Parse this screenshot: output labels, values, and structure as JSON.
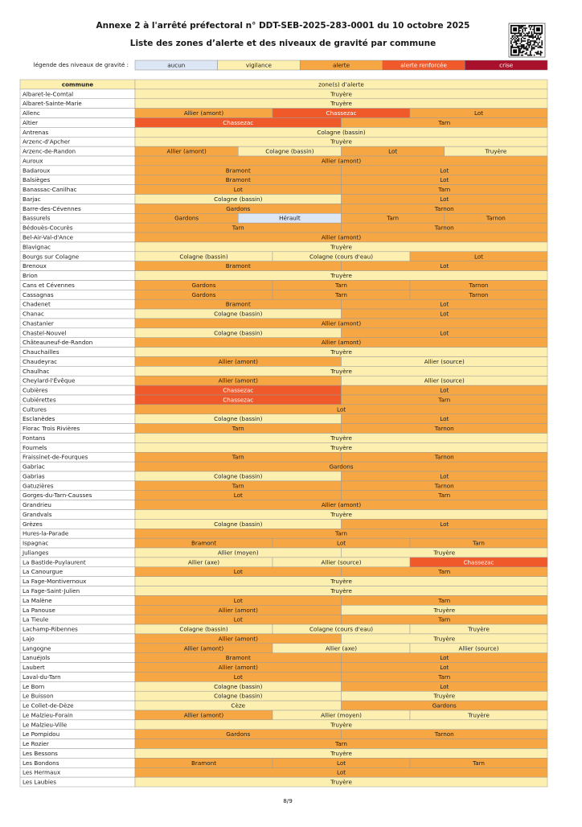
{
  "header": {
    "title": "Annexe 2 à l'arrêté préfectoral n° DDT-SEB-2025-283-0001 du 10 octobre 2025",
    "subtitle": "Liste des zones d’alerte et des niveaux de gravité par commune"
  },
  "legend": {
    "label": "légende des niveaux de gravité :",
    "levels": [
      {
        "name": "aucun",
        "color": "#dde6f4",
        "text_color": "#1a1a1a"
      },
      {
        "name": "vigilance",
        "color": "#fdefb0",
        "text_color": "#1a1a1a"
      },
      {
        "name": "alerte",
        "color": "#f6a744",
        "text_color": "#1a1a1a"
      },
      {
        "name": "alerte renforcée",
        "color": "#f05a2a",
        "text_color": "#ffffff"
      },
      {
        "name": "crise",
        "color": "#a9102c",
        "text_color": "#ffffff"
      }
    ]
  },
  "table": {
    "columns": [
      "commune",
      "zone(s) d’alerte"
    ],
    "header_level": 1,
    "rows": [
      [
        "Albaret-le-Comtal",
        [
          [
            "Truyère",
            1
          ]
        ]
      ],
      [
        "Albaret-Sainte-Marie",
        [
          [
            "Truyère",
            1
          ]
        ]
      ],
      [
        "Allenc",
        [
          [
            "Allier (amont)",
            2
          ],
          [
            "Chassezac",
            3
          ],
          [
            "Lot",
            2
          ]
        ]
      ],
      [
        "Altier",
        [
          [
            "Chassezac",
            3
          ],
          [
            "Tarn",
            2
          ]
        ]
      ],
      [
        "Antrenas",
        [
          [
            "Colagne (bassin)",
            1
          ]
        ]
      ],
      [
        "Arzenc-d'Apcher",
        [
          [
            "Truyère",
            1
          ]
        ]
      ],
      [
        "Arzenc-de-Randon",
        [
          [
            "Allier (amont)",
            2
          ],
          [
            "Colagne (bassin)",
            1
          ],
          [
            "Lot",
            2
          ],
          [
            "Truyère",
            1
          ]
        ]
      ],
      [
        "Auroux",
        [
          [
            "Allier (amont)",
            2
          ]
        ]
      ],
      [
        "Badaroux",
        [
          [
            "Bramont",
            2
          ],
          [
            "Lot",
            2
          ]
        ]
      ],
      [
        "Balsièges",
        [
          [
            "Bramont",
            2
          ],
          [
            "Lot",
            2
          ]
        ]
      ],
      [
        "Banassac-Canilhac",
        [
          [
            "Lot",
            2
          ],
          [
            "Tarn",
            2
          ]
        ]
      ],
      [
        "Barjac",
        [
          [
            "Colagne (bassin)",
            1
          ],
          [
            "Lot",
            2
          ]
        ]
      ],
      [
        "Barre-des-Cévennes",
        [
          [
            "Gardons",
            2
          ],
          [
            "Tarnon",
            2
          ]
        ]
      ],
      [
        "Bassurels",
        [
          [
            "Gardons",
            2
          ],
          [
            "Hérault",
            0
          ],
          [
            "Tarn",
            2
          ],
          [
            "Tarnon",
            2
          ]
        ]
      ],
      [
        "Bédouès-Cocurès",
        [
          [
            "Tarn",
            2
          ],
          [
            "Tarnon",
            2
          ]
        ]
      ],
      [
        "Bel-Air-Val-d'Ance",
        [
          [
            "Allier (amont)",
            2
          ]
        ]
      ],
      [
        "Blavignac",
        [
          [
            "Truyère",
            1
          ]
        ]
      ],
      [
        "Bourgs sur Colagne",
        [
          [
            "Colagne (bassin)",
            1
          ],
          [
            "Colagne (cours d'eau)",
            1
          ],
          [
            "Lot",
            2
          ]
        ]
      ],
      [
        "Brenoux",
        [
          [
            "Bramont",
            2
          ],
          [
            "Lot",
            2
          ]
        ]
      ],
      [
        "Brion",
        [
          [
            "Truyère",
            1
          ]
        ]
      ],
      [
        "Cans et Cévennes",
        [
          [
            "Gardons",
            2
          ],
          [
            "Tarn",
            2
          ],
          [
            "Tarnon",
            2
          ]
        ]
      ],
      [
        "Cassagnas",
        [
          [
            "Gardons",
            2
          ],
          [
            "Tarn",
            2
          ],
          [
            "Tarnon",
            2
          ]
        ]
      ],
      [
        "Chadenet",
        [
          [
            "Bramont",
            2
          ],
          [
            "Lot",
            2
          ]
        ]
      ],
      [
        "Chanac",
        [
          [
            "Colagne (bassin)",
            1
          ],
          [
            "Lot",
            2
          ]
        ]
      ],
      [
        "Chastanier",
        [
          [
            "Allier (amont)",
            2
          ]
        ]
      ],
      [
        "Chastel-Nouvel",
        [
          [
            "Colagne (bassin)",
            1
          ],
          [
            "Lot",
            2
          ]
        ]
      ],
      [
        "Châteauneuf-de-Randon",
        [
          [
            "Allier (amont)",
            2
          ]
        ]
      ],
      [
        "Chauchailles",
        [
          [
            "Truyère",
            1
          ]
        ]
      ],
      [
        "Chaudeyrac",
        [
          [
            "Allier (amont)",
            2
          ],
          [
            "Allier (source)",
            1
          ]
        ]
      ],
      [
        "Chaulhac",
        [
          [
            "Truyère",
            1
          ]
        ]
      ],
      [
        "Cheylard-l'Évêque",
        [
          [
            "Allier (amont)",
            2
          ],
          [
            "Allier (source)",
            1
          ]
        ]
      ],
      [
        "Cubières",
        [
          [
            "Chassezac",
            3
          ],
          [
            "Lot",
            2
          ]
        ]
      ],
      [
        "Cubiérettes",
        [
          [
            "Chassezac",
            3
          ],
          [
            "Tarn",
            2
          ]
        ]
      ],
      [
        "Cultures",
        [
          [
            "Lot",
            2
          ]
        ]
      ],
      [
        "Esclanèdes",
        [
          [
            "Colagne (bassin)",
            1
          ],
          [
            "Lot",
            2
          ]
        ]
      ],
      [
        "Florac Trois Rivières",
        [
          [
            "Tarn",
            2
          ],
          [
            "Tarnon",
            2
          ]
        ]
      ],
      [
        "Fontans",
        [
          [
            "Truyère",
            1
          ]
        ]
      ],
      [
        "Fournels",
        [
          [
            "Truyère",
            1
          ]
        ]
      ],
      [
        "Fraissinet-de-Fourques",
        [
          [
            "Tarn",
            2
          ],
          [
            "Tarnon",
            2
          ]
        ]
      ],
      [
        "Gabriac",
        [
          [
            "Gardons",
            2
          ]
        ]
      ],
      [
        "Gabrias",
        [
          [
            "Colagne (bassin)",
            1
          ],
          [
            "Lot",
            2
          ]
        ]
      ],
      [
        "Gatuzières",
        [
          [
            "Tarn",
            2
          ],
          [
            "Tarnon",
            2
          ]
        ]
      ],
      [
        "Gorges-du-Tarn-Causses",
        [
          [
            "Lot",
            2
          ],
          [
            "Tarn",
            2
          ]
        ]
      ],
      [
        "Grandrieu",
        [
          [
            "Allier (amont)",
            2
          ]
        ]
      ],
      [
        "Grandvals",
        [
          [
            "Truyère",
            1
          ]
        ]
      ],
      [
        "Grèzes",
        [
          [
            "Colagne (bassin)",
            1
          ],
          [
            "Lot",
            2
          ]
        ]
      ],
      [
        "Hures-la-Parade",
        [
          [
            "Tarn",
            2
          ]
        ]
      ],
      [
        "Ispagnac",
        [
          [
            "Bramont",
            2
          ],
          [
            "Lot",
            2
          ],
          [
            "Tarn",
            2
          ]
        ]
      ],
      [
        "Julianges",
        [
          [
            "Allier (moyen)",
            1
          ],
          [
            "Truyère",
            1
          ]
        ]
      ],
      [
        "La Bastide-Puylaurent",
        [
          [
            "Allier (axe)",
            1
          ],
          [
            "Allier (source)",
            1
          ],
          [
            "Chassezac",
            3
          ]
        ]
      ],
      [
        "La Canourgue",
        [
          [
            "Lot",
            2
          ],
          [
            "Tarn",
            2
          ]
        ]
      ],
      [
        "La Fage-Montivernoux",
        [
          [
            "Truyère",
            1
          ]
        ]
      ],
      [
        "La Fage-Saint-Julien",
        [
          [
            "Truyère",
            1
          ]
        ]
      ],
      [
        "La Malène",
        [
          [
            "Lot",
            2
          ],
          [
            "Tarn",
            2
          ]
        ]
      ],
      [
        "La Panouse",
        [
          [
            "Allier (amont)",
            2
          ],
          [
            "Truyère",
            1
          ]
        ]
      ],
      [
        "La Tieule",
        [
          [
            "Lot",
            2
          ],
          [
            "Tarn",
            2
          ]
        ]
      ],
      [
        "Lachamp-Ribennes",
        [
          [
            "Colagne (bassin)",
            1
          ],
          [
            "Colagne (cours d'eau)",
            1
          ],
          [
            "Truyère",
            1
          ]
        ]
      ],
      [
        "Lajo",
        [
          [
            "Allier (amont)",
            2
          ],
          [
            "Truyère",
            1
          ]
        ]
      ],
      [
        "Langogne",
        [
          [
            "Allier (amont)",
            2
          ],
          [
            "Allier (axe)",
            1
          ],
          [
            "Allier (source)",
            1
          ]
        ]
      ],
      [
        "Lanuéjols",
        [
          [
            "Bramont",
            2
          ],
          [
            "Lot",
            2
          ]
        ]
      ],
      [
        "Laubert",
        [
          [
            "Allier (amont)",
            2
          ],
          [
            "Lot",
            2
          ]
        ]
      ],
      [
        "Laval-du-Tarn",
        [
          [
            "Lot",
            2
          ],
          [
            "Tarn",
            2
          ]
        ]
      ],
      [
        "Le Born",
        [
          [
            "Colagne (bassin)",
            1
          ],
          [
            "Lot",
            2
          ]
        ]
      ],
      [
        "Le Buisson",
        [
          [
            "Colagne (bassin)",
            1
          ],
          [
            "Truyère",
            1
          ]
        ]
      ],
      [
        "Le Collet-de-Dèze",
        [
          [
            "Cèze",
            1
          ],
          [
            "Gardons",
            2
          ]
        ]
      ],
      [
        "Le Malzieu-Forain",
        [
          [
            "Allier (amont)",
            2
          ],
          [
            "Allier (moyen)",
            1
          ],
          [
            "Truyère",
            1
          ]
        ]
      ],
      [
        "Le Malzieu-Ville",
        [
          [
            "Truyère",
            1
          ]
        ]
      ],
      [
        "Le Pompidou",
        [
          [
            "Gardons",
            2
          ],
          [
            "Tarnon",
            2
          ]
        ]
      ],
      [
        "Le Rozier",
        [
          [
            "Tarn",
            2
          ]
        ]
      ],
      [
        "Les Bessons",
        [
          [
            "Truyère",
            1
          ]
        ]
      ],
      [
        "Les Bondons",
        [
          [
            "Bramont",
            2
          ],
          [
            "Lot",
            2
          ],
          [
            "Tarn",
            2
          ]
        ]
      ],
      [
        "Les Hermaux",
        [
          [
            "Lot",
            2
          ]
        ]
      ],
      [
        "Les Laubies",
        [
          [
            "Truyère",
            1
          ]
        ]
      ]
    ]
  },
  "footer": {
    "page": "8/9"
  }
}
